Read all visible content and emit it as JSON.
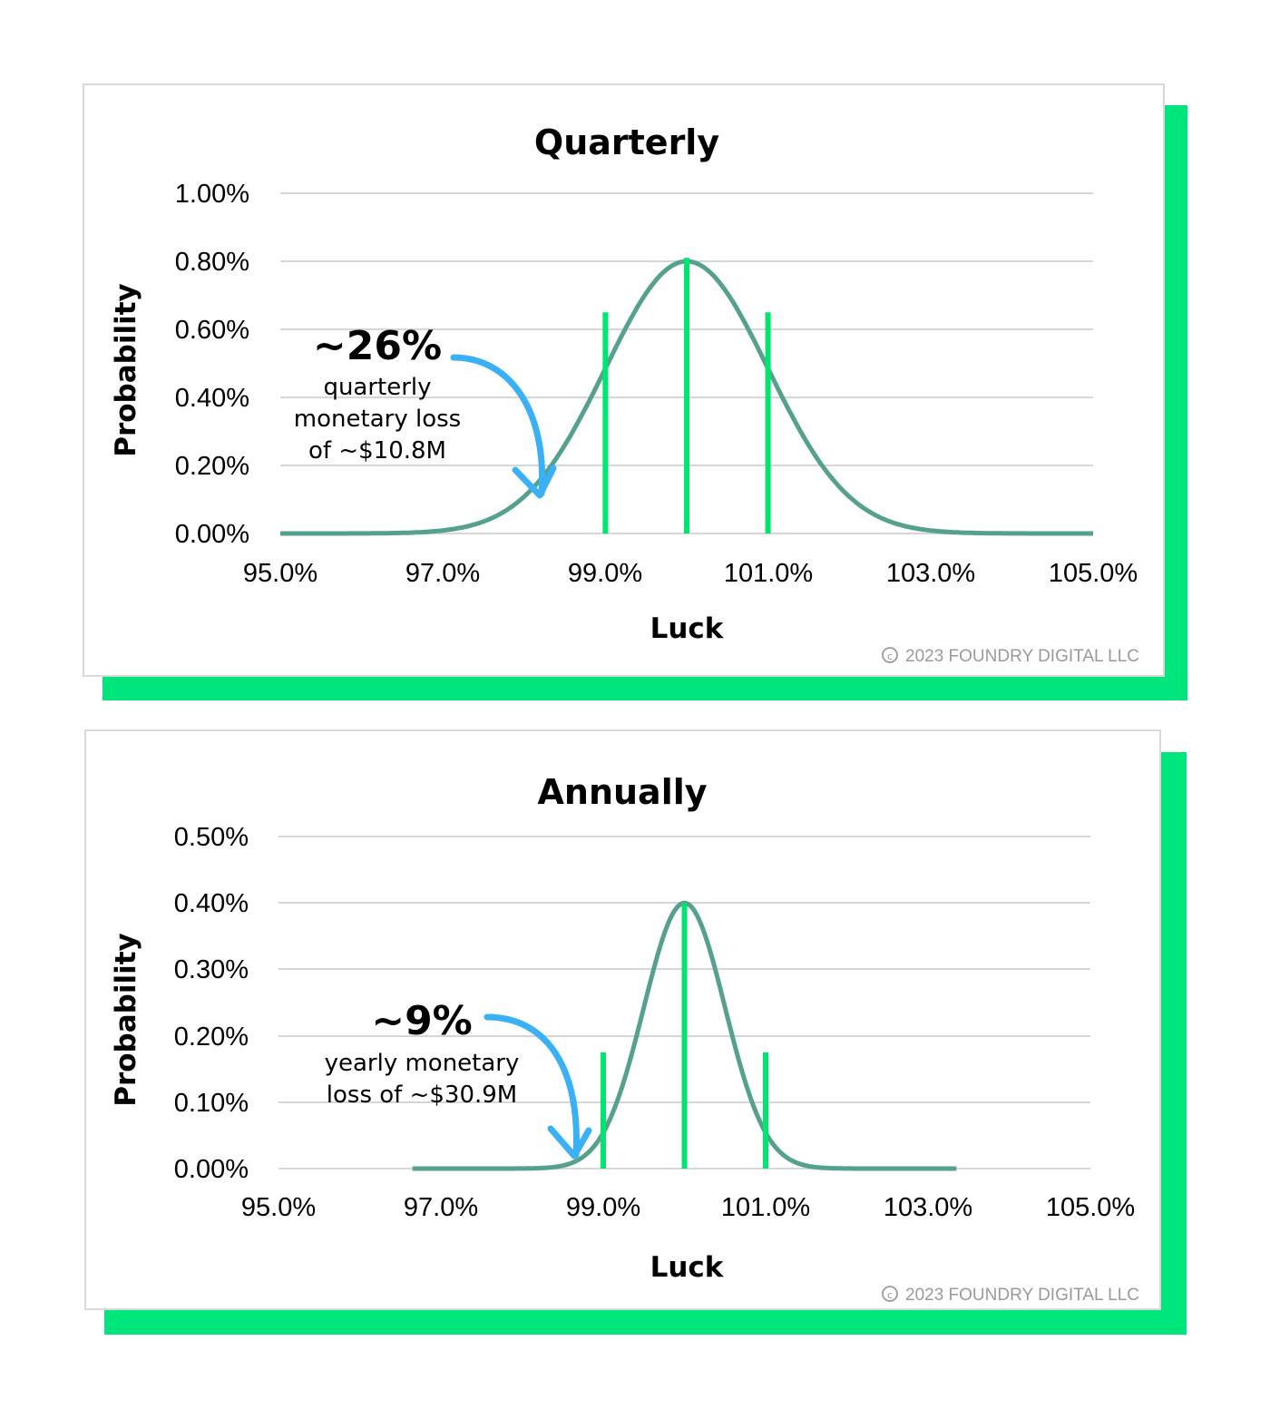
{
  "colors": {
    "accent": "#00e47c",
    "curve": "#55a18e",
    "marker": "#00e56f",
    "arrow": "#3ab0f5",
    "grid": "#d6d6d6",
    "copyright": "#9a9a9a"
  },
  "chart_data": [
    {
      "type": "line",
      "title": "Quarterly",
      "xlabel": "Luck",
      "ylabel": "Probability",
      "xlim": [
        95.0,
        105.0
      ],
      "ylim": [
        0.0,
        1.0
      ],
      "x_ticks": [
        "95.0%",
        "97.0%",
        "99.0%",
        "101.0%",
        "103.0%",
        "105.0%"
      ],
      "y_ticks": [
        "0.00%",
        "0.20%",
        "0.40%",
        "0.60%",
        "0.80%",
        "1.00%"
      ],
      "grid": true,
      "distribution": {
        "mean": 100.0,
        "sd": 1.0,
        "peak": 0.8,
        "x_start": 95.0,
        "x_end": 105.0
      },
      "markers": [
        {
          "x": 99.0,
          "y": 0.65
        },
        {
          "x": 100.0,
          "y": 0.81
        },
        {
          "x": 101.0,
          "y": 0.65
        }
      ],
      "annotation": {
        "value": "~26%",
        "lines": [
          "quarterly",
          "monetary loss",
          "of ~$10.8M"
        ]
      },
      "copyright": "2023 FOUNDRY DIGITAL LLC"
    },
    {
      "type": "line",
      "title": "Annually",
      "xlabel": "Luck",
      "ylabel": "Probability",
      "xlim": [
        95.0,
        105.0
      ],
      "ylim": [
        0.0,
        0.5
      ],
      "x_ticks": [
        "95.0%",
        "97.0%",
        "99.0%",
        "101.0%",
        "103.0%",
        "105.0%"
      ],
      "y_ticks": [
        "0.00%",
        "0.10%",
        "0.20%",
        "0.30%",
        "0.40%",
        "0.50%"
      ],
      "grid": true,
      "distribution": {
        "mean": 100.0,
        "sd": 0.5,
        "peak": 0.4,
        "x_start": 96.65,
        "x_end": 103.35
      },
      "markers": [
        {
          "x": 99.0,
          "y": 0.175
        },
        {
          "x": 100.0,
          "y": 0.4
        },
        {
          "x": 101.0,
          "y": 0.175
        }
      ],
      "annotation": {
        "value": "~9%",
        "lines": [
          "yearly monetary",
          "loss of ~$30.9M"
        ]
      },
      "copyright": "2023 FOUNDRY DIGITAL LLC"
    }
  ]
}
